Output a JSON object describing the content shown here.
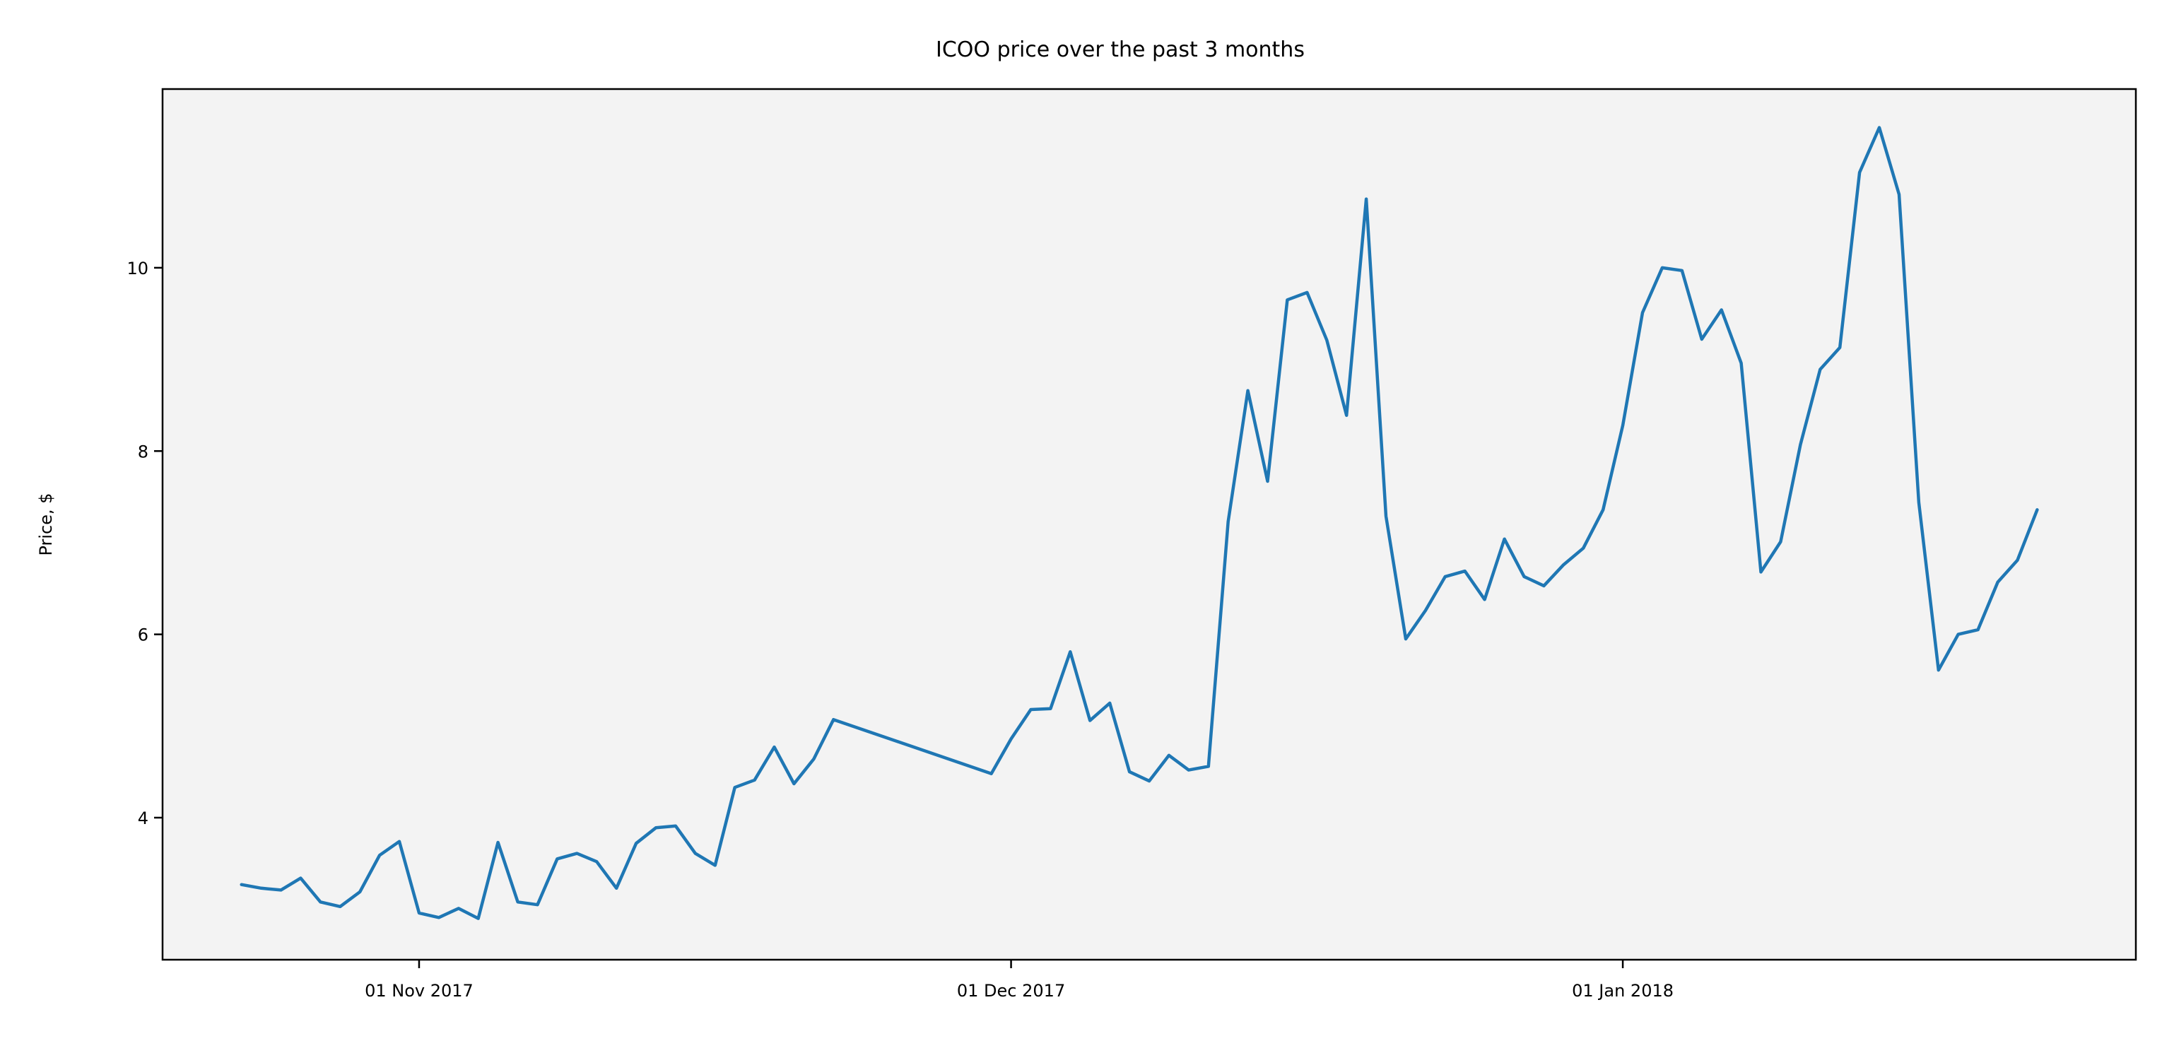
{
  "chart_data": {
    "type": "line",
    "title": "ICOO price over the past 3 months",
    "xlabel": "",
    "ylabel": "Price, $",
    "x_ticks": [
      {
        "date": "2017-11-01",
        "label": "01 Nov 2017"
      },
      {
        "date": "2017-12-01",
        "label": "01 Dec 2017"
      },
      {
        "date": "2018-01-01",
        "label": "01 Jan 2018"
      }
    ],
    "y_ticks": [
      4,
      6,
      8,
      10
    ],
    "xlim": [
      "2017-10-19",
      "2018-01-27"
    ],
    "ylim": [
      2.45,
      11.95
    ],
    "grid": false,
    "colors": {
      "line": "#1f77b4",
      "plot_background": "#f3f3f3",
      "axes": "#000000"
    },
    "series": [
      {
        "points": [
          [
            "2017-10-23",
            3.27
          ],
          [
            "2017-10-24",
            3.23
          ],
          [
            "2017-10-25",
            3.21
          ],
          [
            "2017-10-26",
            3.34
          ],
          [
            "2017-10-27",
            3.08
          ],
          [
            "2017-10-28",
            3.03
          ],
          [
            "2017-10-29",
            3.19
          ],
          [
            "2017-10-30",
            3.59
          ],
          [
            "2017-10-31",
            3.74
          ],
          [
            "2017-11-01",
            2.96
          ],
          [
            "2017-11-02",
            2.91
          ],
          [
            "2017-11-03",
            3.01
          ],
          [
            "2017-11-04",
            2.9
          ],
          [
            "2017-11-05",
            3.73
          ],
          [
            "2017-11-06",
            3.08
          ],
          [
            "2017-11-07",
            3.05
          ],
          [
            "2017-11-08",
            3.55
          ],
          [
            "2017-11-09",
            3.61
          ],
          [
            "2017-11-10",
            3.52
          ],
          [
            "2017-11-11",
            3.23
          ],
          [
            "2017-11-12",
            3.72
          ],
          [
            "2017-11-13",
            3.89
          ],
          [
            "2017-11-14",
            3.91
          ],
          [
            "2017-11-15",
            3.61
          ],
          [
            "2017-11-16",
            3.48
          ],
          [
            "2017-11-17",
            4.33
          ],
          [
            "2017-11-18",
            4.41
          ],
          [
            "2017-11-19",
            4.77
          ],
          [
            "2017-11-20",
            4.37
          ],
          [
            "2017-11-21",
            4.64
          ],
          [
            "2017-11-22",
            5.07
          ],
          [
            "2017-11-30",
            4.48
          ],
          [
            "2017-12-01",
            4.86
          ],
          [
            "2017-12-02",
            5.18
          ],
          [
            "2017-12-03",
            5.19
          ],
          [
            "2017-12-04",
            5.81
          ],
          [
            "2017-12-05",
            5.06
          ],
          [
            "2017-12-06",
            5.25
          ],
          [
            "2017-12-07",
            4.5
          ],
          [
            "2017-12-08",
            4.4
          ],
          [
            "2017-12-09",
            4.68
          ],
          [
            "2017-12-10",
            4.52
          ],
          [
            "2017-12-11",
            4.56
          ],
          [
            "2017-12-12",
            7.23
          ],
          [
            "2017-12-13",
            8.66
          ],
          [
            "2017-12-14",
            7.67
          ],
          [
            "2017-12-15",
            9.65
          ],
          [
            "2017-12-16",
            9.73
          ],
          [
            "2017-12-17",
            9.21
          ],
          [
            "2017-12-18",
            8.39
          ],
          [
            "2017-12-19",
            10.75
          ],
          [
            "2017-12-20",
            7.29
          ],
          [
            "2017-12-21",
            5.95
          ],
          [
            "2017-12-22",
            6.26
          ],
          [
            "2017-12-23",
            6.63
          ],
          [
            "2017-12-24",
            6.69
          ],
          [
            "2017-12-25",
            6.38
          ],
          [
            "2017-12-26",
            7.04
          ],
          [
            "2017-12-27",
            6.63
          ],
          [
            "2017-12-28",
            6.53
          ],
          [
            "2017-12-29",
            6.76
          ],
          [
            "2017-12-30",
            6.94
          ],
          [
            "2017-12-31",
            7.36
          ],
          [
            "2018-01-01",
            8.28
          ],
          [
            "2018-01-02",
            9.51
          ],
          [
            "2018-01-03",
            10.0
          ],
          [
            "2018-01-04",
            9.97
          ],
          [
            "2018-01-05",
            9.22
          ],
          [
            "2018-01-06",
            9.54
          ],
          [
            "2018-01-07",
            8.96
          ],
          [
            "2018-01-08",
            6.68
          ],
          [
            "2018-01-09",
            7.01
          ],
          [
            "2018-01-10",
            8.07
          ],
          [
            "2018-01-11",
            8.89
          ],
          [
            "2018-01-12",
            9.13
          ],
          [
            "2018-01-13",
            11.04
          ],
          [
            "2018-01-14",
            11.53
          ],
          [
            "2018-01-15",
            10.8
          ],
          [
            "2018-01-16",
            7.44
          ],
          [
            "2018-01-17",
            5.61
          ],
          [
            "2018-01-18",
            6.0
          ],
          [
            "2018-01-19",
            6.05
          ],
          [
            "2018-01-20",
            6.57
          ],
          [
            "2018-01-21",
            6.81
          ],
          [
            "2018-01-22",
            7.36
          ]
        ]
      }
    ]
  }
}
